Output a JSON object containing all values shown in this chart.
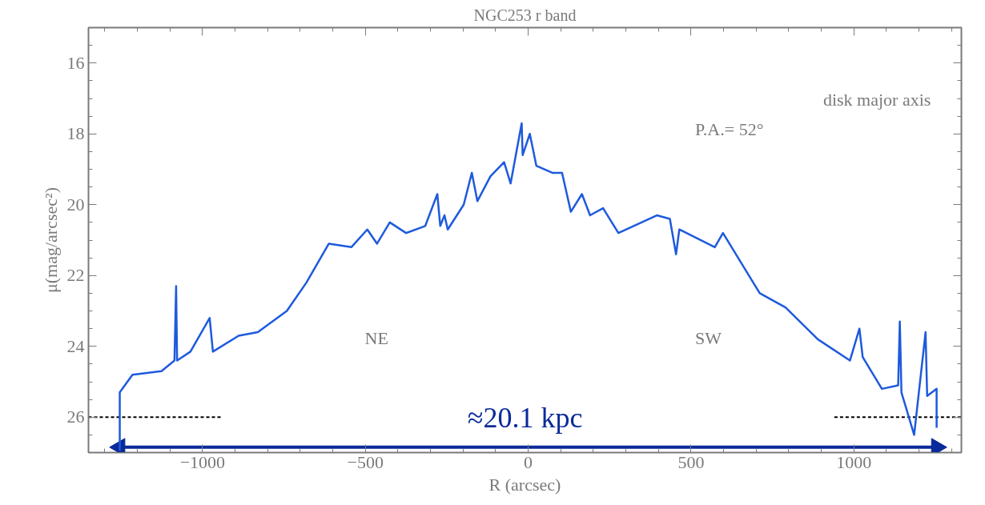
{
  "chart_data": {
    "type": "line",
    "title": "NGC253 r band",
    "xlabel": "R (arcsec)",
    "ylabel": "μ(mag/arcsec²)",
    "xlim": [
      -1350,
      1330
    ],
    "xticks": [
      -1000,
      -500,
      0,
      500,
      1000
    ],
    "ylim": [
      27,
      15
    ],
    "yticks": [
      16,
      18,
      20,
      22,
      24,
      26
    ],
    "grid": false,
    "series": [
      {
        "color": "#1e5adc",
        "line_style": "solid",
        "x": [
          -1254,
          -1254,
          -1215,
          -1126,
          -1086,
          -1081,
          -1078,
          -1037,
          -978,
          -968,
          -889,
          -830,
          -741,
          -681,
          -612,
          -543,
          -494,
          -464,
          -425,
          -375,
          -316,
          -279,
          -270,
          -257,
          -247,
          -198,
          -173,
          -156,
          -116,
          -74,
          -54,
          -20,
          -17,
          5,
          25,
          74,
          104,
          131,
          165,
          190,
          230,
          277,
          395,
          435,
          454,
          464,
          573,
          598,
          691,
          711,
          790,
          889,
          988,
          1017,
          1027,
          1086,
          1136,
          1141,
          1146,
          1185,
          1220,
          1225,
          1254,
          1254
        ],
        "values": [
          26.95,
          25.3,
          24.8,
          24.7,
          24.4,
          22.3,
          24.4,
          24.15,
          23.2,
          24.15,
          23.7,
          23.6,
          23.0,
          22.2,
          21.1,
          21.2,
          20.7,
          21.1,
          20.5,
          20.8,
          20.6,
          19.7,
          20.6,
          20.3,
          20.7,
          20.0,
          19.1,
          19.9,
          19.2,
          18.8,
          19.4,
          17.7,
          18.6,
          18.0,
          18.9,
          19.1,
          19.1,
          20.2,
          19.7,
          20.3,
          20.1,
          20.8,
          20.3,
          20.4,
          21.4,
          20.7,
          21.2,
          20.8,
          22.2,
          22.5,
          22.9,
          23.8,
          24.4,
          23.5,
          24.3,
          25.2,
          25.1,
          23.3,
          25.3,
          26.5,
          23.6,
          25.4,
          25.2,
          26.3
        ]
      },
      {
        "color": "#000000",
        "line_style": "dashed",
        "x": [
          -1350,
          -940
        ],
        "values": [
          26,
          26
        ]
      },
      {
        "color": "#000000",
        "line_style": "dashed",
        "x": [
          940,
          1330
        ],
        "values": [
          26,
          26
        ]
      },
      {
        "color": "#0a2a9a",
        "line_style": "solid",
        "marker": "triangle",
        "x": [
          -1254,
          1254
        ],
        "values": [
          26.85,
          26.85
        ]
      }
    ],
    "annotations": [
      "disk major axis",
      "P.A.= 52°",
      "NE",
      "SW",
      "≈20.1 kpc"
    ]
  }
}
